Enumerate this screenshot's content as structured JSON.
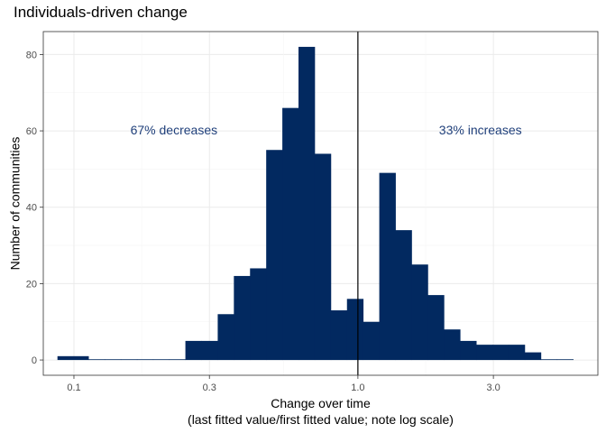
{
  "chart_data": {
    "type": "histogram",
    "title": "Individuals-driven change",
    "xlabel": "Change over time",
    "xlabel_sub": "(last fitted value/first fitted value; note log scale)",
    "ylabel": "Number of communities",
    "x_scale": "log10",
    "xlim": [
      0.078,
      7.0
    ],
    "ylim": [
      -4,
      86
    ],
    "x_ticks": [
      0.1,
      0.3,
      1.0,
      3.0
    ],
    "x_tick_labels": [
      "0.1",
      "0.3",
      "1.0",
      "3.0"
    ],
    "y_ticks": [
      0,
      20,
      40,
      60,
      80
    ],
    "y_tick_labels": [
      "0",
      "20",
      "40",
      "60",
      "80"
    ],
    "bins": [
      {
        "x0": 0.0875,
        "x1": 0.1125,
        "count": 1
      },
      {
        "x0": 0.1125,
        "x1": 0.1282,
        "count": 0
      },
      {
        "x0": 0.1282,
        "x1": 0.1462,
        "count": 0
      },
      {
        "x0": 0.1462,
        "x1": 0.1667,
        "count": 0
      },
      {
        "x0": 0.1667,
        "x1": 0.19,
        "count": 0
      },
      {
        "x0": 0.19,
        "x1": 0.2166,
        "count": 0
      },
      {
        "x0": 0.2166,
        "x1": 0.2469,
        "count": 0
      },
      {
        "x0": 0.2469,
        "x1": 0.2815,
        "count": 5
      },
      {
        "x0": 0.2815,
        "x1": 0.3209,
        "count": 5
      },
      {
        "x0": 0.3209,
        "x1": 0.3658,
        "count": 12
      },
      {
        "x0": 0.3658,
        "x1": 0.417,
        "count": 22
      },
      {
        "x0": 0.417,
        "x1": 0.4754,
        "count": 24
      },
      {
        "x0": 0.4754,
        "x1": 0.5419,
        "count": 55
      },
      {
        "x0": 0.5419,
        "x1": 0.6178,
        "count": 66
      },
      {
        "x0": 0.6178,
        "x1": 0.7042,
        "count": 82
      },
      {
        "x0": 0.7042,
        "x1": 0.8028,
        "count": 54
      },
      {
        "x0": 0.8028,
        "x1": 0.9152,
        "count": 13
      },
      {
        "x0": 0.9152,
        "x1": 1.0433,
        "count": 16
      },
      {
        "x0": 1.0433,
        "x1": 1.1893,
        "count": 10
      },
      {
        "x0": 1.1893,
        "x1": 1.3558,
        "count": 49
      },
      {
        "x0": 1.3558,
        "x1": 1.5456,
        "count": 34
      },
      {
        "x0": 1.5456,
        "x1": 1.762,
        "count": 25
      },
      {
        "x0": 1.762,
        "x1": 2.0086,
        "count": 17
      },
      {
        "x0": 2.0086,
        "x1": 2.2898,
        "count": 8
      },
      {
        "x0": 2.2898,
        "x1": 2.6104,
        "count": 5
      },
      {
        "x0": 2.6104,
        "x1": 2.9758,
        "count": 4
      },
      {
        "x0": 2.9758,
        "x1": 3.3924,
        "count": 4
      },
      {
        "x0": 3.3924,
        "x1": 3.8673,
        "count": 4
      },
      {
        "x0": 3.8673,
        "x1": 4.4087,
        "count": 2
      },
      {
        "x0": 4.4087,
        "x1": 5.0259,
        "count": 0
      },
      {
        "x0": 5.0259,
        "x1": 5.7295,
        "count": 0
      }
    ],
    "bar_color": "#022960",
    "vline": 1.0,
    "annotations": [
      {
        "text": "67% decreases",
        "x": 0.225,
        "y": 60,
        "color": "#1f3f7a"
      },
      {
        "text": "33% increases",
        "x": 2.7,
        "y": 60,
        "color": "#1f3f7a"
      }
    ]
  }
}
